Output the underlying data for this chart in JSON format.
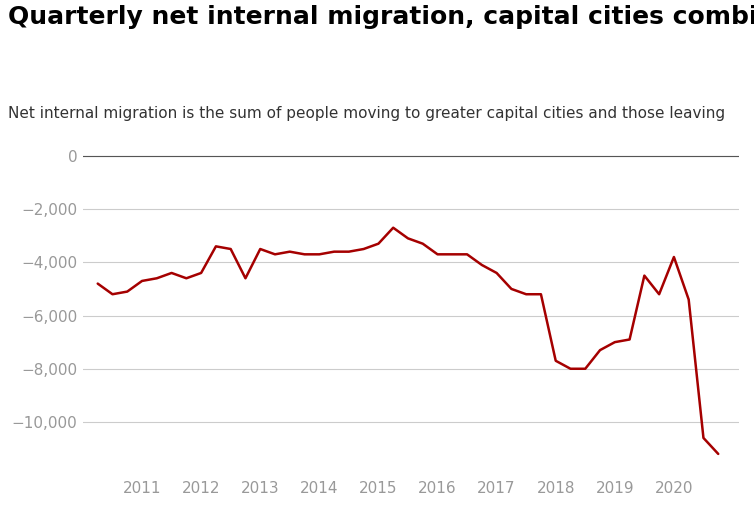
{
  "title": "Quarterly net internal migration, capital cities combined",
  "subtitle": "Net internal migration is the sum of people moving to greater capital cities and those leaving",
  "line_color": "#a50000",
  "background_color": "#ffffff",
  "x_values": [
    2010.25,
    2010.5,
    2010.75,
    2011.0,
    2011.25,
    2011.5,
    2011.75,
    2012.0,
    2012.25,
    2012.5,
    2012.75,
    2013.0,
    2013.25,
    2013.5,
    2013.75,
    2014.0,
    2014.25,
    2014.5,
    2014.75,
    2015.0,
    2015.25,
    2015.5,
    2015.75,
    2016.0,
    2016.25,
    2016.5,
    2016.75,
    2017.0,
    2017.25,
    2017.5,
    2017.75,
    2018.0,
    2018.25,
    2018.5,
    2018.75,
    2019.0,
    2019.25,
    2019.5,
    2019.75,
    2020.0,
    2020.25,
    2020.5,
    2020.75
  ],
  "y_values": [
    -4800,
    -5200,
    -5100,
    -4700,
    -4600,
    -4400,
    -4600,
    -4400,
    -3400,
    -3500,
    -4600,
    -3500,
    -3700,
    -3600,
    -3700,
    -3700,
    -3600,
    -3600,
    -3500,
    -3300,
    -2700,
    -3100,
    -3300,
    -3700,
    -3700,
    -3700,
    -4100,
    -4400,
    -5000,
    -5200,
    -5200,
    -7700,
    -8000,
    -8000,
    -7300,
    -7000,
    -6900,
    -4500,
    -5200,
    -3800,
    -5400,
    -10600,
    -11200
  ],
  "ylim": [
    -12000,
    500
  ],
  "xlim": [
    2010.0,
    2021.1
  ],
  "yticks": [
    0,
    -2000,
    -4000,
    -6000,
    -8000,
    -10000
  ],
  "xticks": [
    2011,
    2012,
    2013,
    2014,
    2015,
    2016,
    2017,
    2018,
    2019,
    2020
  ],
  "grid_color": "#cccccc",
  "tick_color": "#999999",
  "line_width": 1.8,
  "title_fontsize": 18,
  "subtitle_fontsize": 11,
  "tick_fontsize": 11
}
